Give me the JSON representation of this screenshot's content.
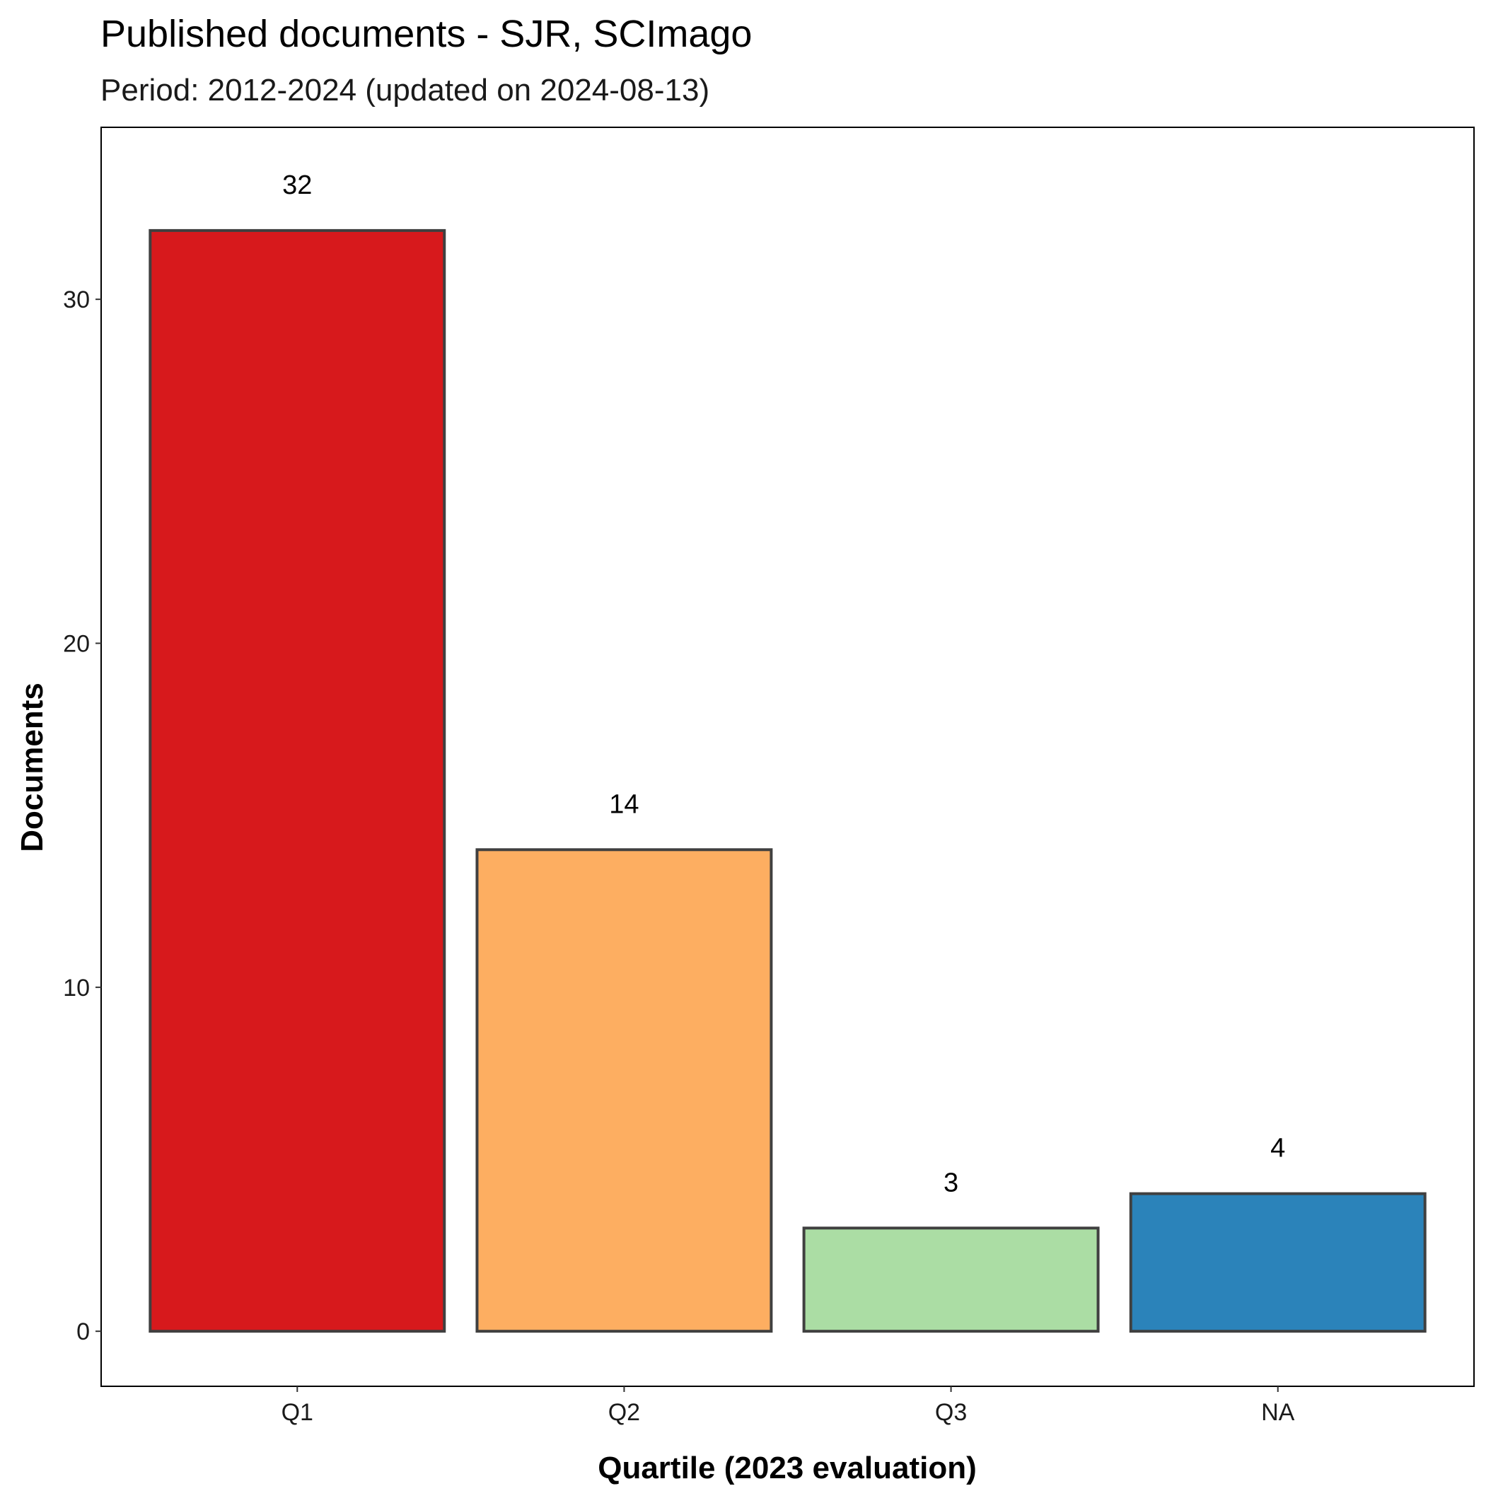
{
  "chart_data": {
    "type": "bar",
    "title": "Published documents - SJR, SCImago",
    "subtitle": "Period: 2012-2024 (updated on 2024-08-13)",
    "xlabel": "Quartile (2023 evaluation)",
    "ylabel": "Documents",
    "categories": [
      "Q1",
      "Q2",
      "Q3",
      "NA"
    ],
    "values": [
      32,
      14,
      3,
      4
    ],
    "data_labels": [
      "32",
      "14",
      "3",
      "4"
    ],
    "colors": [
      "#D7191C",
      "#FDAE61",
      "#ABDDA4",
      "#2B83BA"
    ],
    "bar_outline_color": "#404040",
    "ylim": [
      -1.6,
      35.0
    ],
    "yticks": [
      0,
      10,
      20,
      30
    ],
    "ytick_labels": [
      "0",
      "10",
      "20",
      "30"
    ],
    "grid": false,
    "legend": "none"
  }
}
